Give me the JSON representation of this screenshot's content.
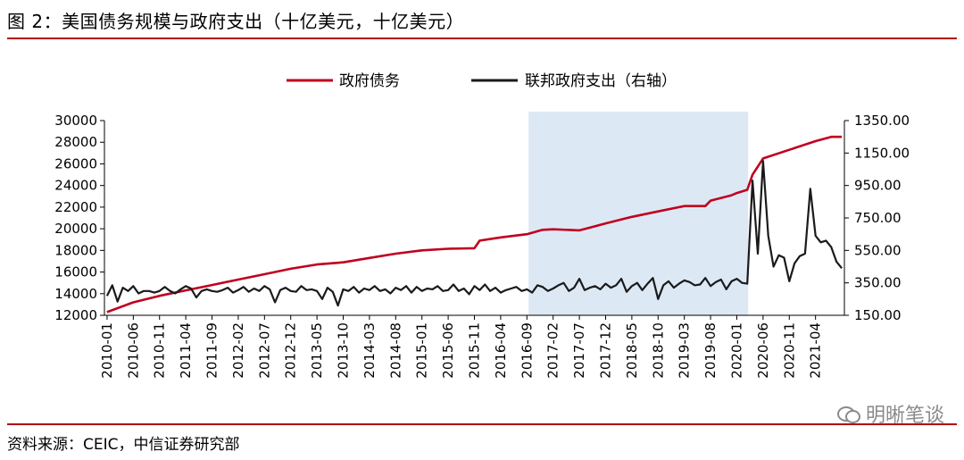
{
  "figure": {
    "title": "图 2：美国债务规模与政府支出（十亿美元，十亿美元）",
    "source": "资料来源：CEIC，中信证券研究部",
    "watermark": "明晰笔谈"
  },
  "chart_data": {
    "type": "line",
    "colors": {
      "debt": "#c0001f",
      "spending": "#1a1a1a",
      "shade": "#dce9f5",
      "rule": "#b3001b"
    },
    "legend": {
      "placement": "top-center",
      "entries": [
        "政府债务",
        "联邦政府支出（右轴）"
      ]
    },
    "x_tick_labels": [
      "2010-01",
      "2010-06",
      "2010-11",
      "2011-04",
      "2011-09",
      "2012-02",
      "2012-07",
      "2012-12",
      "2013-05",
      "2013-10",
      "2014-03",
      "2014-08",
      "2015-01",
      "2015-06",
      "2015-11",
      "2016-04",
      "2016-09",
      "2017-02",
      "2017-07",
      "2017-12",
      "2018-05",
      "2018-10",
      "2019-03",
      "2019-08",
      "2020-01",
      "2020-06",
      "2020-11",
      "2021-04"
    ],
    "x_range": [
      "2010-01",
      "2021-09"
    ],
    "shaded_region": [
      "2016-10",
      "2020-03"
    ],
    "y_left": {
      "min": 12000,
      "max": 30000,
      "ticks": [
        "30000",
        "28000",
        "26000",
        "24000",
        "22000",
        "20000",
        "18000",
        "16000",
        "14000",
        "12000"
      ]
    },
    "y_right": {
      "min": 150,
      "max": 1350,
      "ticks": [
        "1350.00",
        "1150.00",
        "950.00",
        "750.00",
        "550.00",
        "350.00",
        "150.00"
      ]
    },
    "series": [
      {
        "name": "政府债务",
        "axis": "left",
        "points": [
          [
            "2010-01",
            12300
          ],
          [
            "2010-06",
            13200
          ],
          [
            "2010-11",
            13800
          ],
          [
            "2011-04",
            14300
          ],
          [
            "2011-09",
            14800
          ],
          [
            "2012-02",
            15300
          ],
          [
            "2012-07",
            15800
          ],
          [
            "2012-12",
            16300
          ],
          [
            "2013-05",
            16700
          ],
          [
            "2013-10",
            16900
          ],
          [
            "2014-03",
            17300
          ],
          [
            "2014-08",
            17700
          ],
          [
            "2015-01",
            18000
          ],
          [
            "2015-06",
            18150
          ],
          [
            "2015-11",
            18200
          ],
          [
            "2015-12",
            18900
          ],
          [
            "2016-04",
            19200
          ],
          [
            "2016-09",
            19500
          ],
          [
            "2016-12",
            19900
          ],
          [
            "2017-02",
            19950
          ],
          [
            "2017-07",
            19850
          ],
          [
            "2017-09",
            20100
          ],
          [
            "2017-12",
            20500
          ],
          [
            "2018-05",
            21100
          ],
          [
            "2018-10",
            21600
          ],
          [
            "2019-03",
            22100
          ],
          [
            "2019-07",
            22100
          ],
          [
            "2019-08",
            22600
          ],
          [
            "2019-12",
            23100
          ],
          [
            "2020-01",
            23300
          ],
          [
            "2020-03",
            23600
          ],
          [
            "2020-04",
            25000
          ],
          [
            "2020-06",
            26500
          ],
          [
            "2020-11",
            27300
          ],
          [
            "2021-04",
            28100
          ],
          [
            "2021-07",
            28500
          ],
          [
            "2021-09",
            28500
          ]
        ]
      },
      {
        "name": "联邦政府支出（右轴）",
        "axis": "right",
        "points": [
          [
            "2010-01",
            270
          ],
          [
            "2010-02",
            335
          ],
          [
            "2010-03",
            235
          ],
          [
            "2010-04",
            320
          ],
          [
            "2010-05",
            300
          ],
          [
            "2010-06",
            330
          ],
          [
            "2010-07",
            285
          ],
          [
            "2010-08",
            300
          ],
          [
            "2010-09",
            300
          ],
          [
            "2010-10",
            290
          ],
          [
            "2010-11",
            300
          ],
          [
            "2010-12",
            325
          ],
          [
            "2011-01",
            300
          ],
          [
            "2011-02",
            285
          ],
          [
            "2011-03",
            310
          ],
          [
            "2011-04",
            330
          ],
          [
            "2011-05",
            315
          ],
          [
            "2011-06",
            260
          ],
          [
            "2011-07",
            300
          ],
          [
            "2011-08",
            310
          ],
          [
            "2011-09",
            300
          ],
          [
            "2011-10",
            295
          ],
          [
            "2011-11",
            305
          ],
          [
            "2011-12",
            320
          ],
          [
            "2012-01",
            290
          ],
          [
            "2012-02",
            305
          ],
          [
            "2012-03",
            325
          ],
          [
            "2012-04",
            295
          ],
          [
            "2012-05",
            315
          ],
          [
            "2012-06",
            300
          ],
          [
            "2012-07",
            330
          ],
          [
            "2012-08",
            310
          ],
          [
            "2012-09",
            230
          ],
          [
            "2012-10",
            305
          ],
          [
            "2012-11",
            320
          ],
          [
            "2012-12",
            300
          ],
          [
            "2013-01",
            295
          ],
          [
            "2013-02",
            330
          ],
          [
            "2013-03",
            305
          ],
          [
            "2013-04",
            310
          ],
          [
            "2013-05",
            300
          ],
          [
            "2013-06",
            250
          ],
          [
            "2013-07",
            320
          ],
          [
            "2013-08",
            295
          ],
          [
            "2013-09",
            210
          ],
          [
            "2013-10",
            310
          ],
          [
            "2013-11",
            300
          ],
          [
            "2013-12",
            325
          ],
          [
            "2014-01",
            290
          ],
          [
            "2014-02",
            315
          ],
          [
            "2014-03",
            305
          ],
          [
            "2014-04",
            330
          ],
          [
            "2014-05",
            300
          ],
          [
            "2014-06",
            310
          ],
          [
            "2014-07",
            285
          ],
          [
            "2014-08",
            320
          ],
          [
            "2014-09",
            305
          ],
          [
            "2014-10",
            330
          ],
          [
            "2014-11",
            290
          ],
          [
            "2014-12",
            325
          ],
          [
            "2015-01",
            300
          ],
          [
            "2015-02",
            315
          ],
          [
            "2015-03",
            310
          ],
          [
            "2015-04",
            330
          ],
          [
            "2015-05",
            300
          ],
          [
            "2015-06",
            305
          ],
          [
            "2015-07",
            340
          ],
          [
            "2015-08",
            300
          ],
          [
            "2015-09",
            315
          ],
          [
            "2015-10",
            280
          ],
          [
            "2015-11",
            330
          ],
          [
            "2015-12",
            305
          ],
          [
            "2016-01",
            340
          ],
          [
            "2016-02",
            300
          ],
          [
            "2016-03",
            320
          ],
          [
            "2016-04",
            290
          ],
          [
            "2016-05",
            305
          ],
          [
            "2016-06",
            315
          ],
          [
            "2016-07",
            325
          ],
          [
            "2016-08",
            300
          ],
          [
            "2016-09",
            310
          ],
          [
            "2016-10",
            290
          ],
          [
            "2016-11",
            335
          ],
          [
            "2016-12",
            325
          ],
          [
            "2017-01",
            300
          ],
          [
            "2017-02",
            315
          ],
          [
            "2017-03",
            335
          ],
          [
            "2017-04",
            350
          ],
          [
            "2017-05",
            300
          ],
          [
            "2017-06",
            320
          ],
          [
            "2017-07",
            375
          ],
          [
            "2017-08",
            305
          ],
          [
            "2017-09",
            320
          ],
          [
            "2017-10",
            330
          ],
          [
            "2017-11",
            310
          ],
          [
            "2017-12",
            345
          ],
          [
            "2018-01",
            320
          ],
          [
            "2018-02",
            335
          ],
          [
            "2018-03",
            375
          ],
          [
            "2018-04",
            295
          ],
          [
            "2018-05",
            330
          ],
          [
            "2018-06",
            350
          ],
          [
            "2018-07",
            305
          ],
          [
            "2018-08",
            345
          ],
          [
            "2018-09",
            380
          ],
          [
            "2018-10",
            250
          ],
          [
            "2018-11",
            335
          ],
          [
            "2018-12",
            360
          ],
          [
            "2019-01",
            320
          ],
          [
            "2019-02",
            345
          ],
          [
            "2019-03",
            365
          ],
          [
            "2019-04",
            355
          ],
          [
            "2019-05",
            335
          ],
          [
            "2019-06",
            340
          ],
          [
            "2019-07",
            380
          ],
          [
            "2019-08",
            330
          ],
          [
            "2019-09",
            355
          ],
          [
            "2019-10",
            370
          ],
          [
            "2019-11",
            310
          ],
          [
            "2019-12",
            360
          ],
          [
            "2020-01",
            375
          ],
          [
            "2020-02",
            350
          ],
          [
            "2020-03",
            345
          ],
          [
            "2020-04",
            980
          ],
          [
            "2020-05",
            530
          ],
          [
            "2020-06",
            1100
          ],
          [
            "2020-07",
            640
          ],
          [
            "2020-08",
            450
          ],
          [
            "2020-09",
            520
          ],
          [
            "2020-10",
            505
          ],
          [
            "2020-11",
            360
          ],
          [
            "2020-12",
            470
          ],
          [
            "2021-01",
            515
          ],
          [
            "2021-02",
            530
          ],
          [
            "2021-03",
            930
          ],
          [
            "2021-04",
            640
          ],
          [
            "2021-05",
            600
          ],
          [
            "2021-06",
            610
          ],
          [
            "2021-07",
            570
          ],
          [
            "2021-08",
            480
          ],
          [
            "2021-09",
            440
          ]
        ]
      }
    ]
  }
}
